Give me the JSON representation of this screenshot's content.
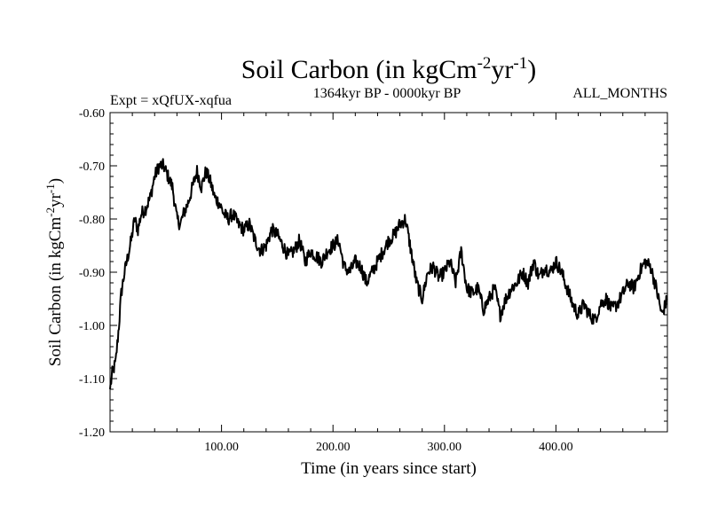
{
  "chart_data": {
    "type": "line",
    "title": "Soil Carbon (in kgCm",
    "title_sup1": "-2",
    "title_mid": "yr",
    "title_sup2": "-1",
    "title_close": ")",
    "subtitle": "1364kyr BP - 0000kyr BP",
    "experiment": "Expt = xQfUX-xqfua",
    "months": "ALL_MONTHS",
    "xlabel": "Time (in years since start)",
    "ylabel": "Soil Carbon (in kgCm",
    "ylabel_sup1": "-2",
    "ylabel_mid": "yr",
    "ylabel_sup2": "-1",
    "ylabel_close": ")",
    "xlim": [
      0,
      500
    ],
    "ylim": [
      -1.2,
      -0.6
    ],
    "x_ticks": [
      100,
      200,
      300,
      400
    ],
    "x_tick_labels": [
      "100.00",
      "200.00",
      "300.00",
      "400.00"
    ],
    "y_ticks": [
      -0.6,
      -0.7,
      -0.8,
      -0.9,
      -1.0,
      -1.1,
      -1.2
    ],
    "y_tick_labels": [
      "-0.60",
      "-0.70",
      "-0.80",
      "-0.90",
      "-1.00",
      "-1.10",
      "-1.20"
    ],
    "series": [
      {
        "name": "Soil Carbon",
        "color": "#000000",
        "x": [
          0,
          2,
          5,
          8,
          10,
          13,
          16,
          19,
          22,
          25,
          28,
          32,
          36,
          40,
          44,
          48,
          52,
          56,
          60,
          63,
          66,
          70,
          74,
          78,
          82,
          86,
          90,
          94,
          98,
          102,
          106,
          110,
          115,
          120,
          125,
          130,
          135,
          140,
          145,
          150,
          155,
          160,
          165,
          170,
          175,
          180,
          185,
          190,
          195,
          200,
          205,
          210,
          215,
          220,
          225,
          230,
          235,
          240,
          245,
          250,
          255,
          260,
          265,
          270,
          275,
          280,
          285,
          290,
          295,
          300,
          305,
          310,
          315,
          320,
          325,
          330,
          335,
          340,
          345,
          350,
          355,
          360,
          365,
          370,
          375,
          380,
          385,
          390,
          395,
          400,
          405,
          410,
          415,
          420,
          425,
          430,
          435,
          440,
          445,
          450,
          455,
          460,
          465,
          470,
          475,
          480,
          485,
          490,
          495,
          500
        ],
        "values": [
          -1.12,
          -1.09,
          -1.07,
          -1.0,
          -0.94,
          -0.9,
          -0.87,
          -0.84,
          -0.8,
          -0.82,
          -0.79,
          -0.78,
          -0.76,
          -0.72,
          -0.7,
          -0.7,
          -0.72,
          -0.74,
          -0.8,
          -0.81,
          -0.79,
          -0.77,
          -0.74,
          -0.71,
          -0.74,
          -0.71,
          -0.73,
          -0.76,
          -0.77,
          -0.79,
          -0.8,
          -0.79,
          -0.81,
          -0.82,
          -0.81,
          -0.84,
          -0.86,
          -0.85,
          -0.82,
          -0.83,
          -0.85,
          -0.87,
          -0.86,
          -0.84,
          -0.88,
          -0.86,
          -0.87,
          -0.88,
          -0.86,
          -0.85,
          -0.84,
          -0.89,
          -0.9,
          -0.88,
          -0.89,
          -0.92,
          -0.9,
          -0.88,
          -0.86,
          -0.84,
          -0.83,
          -0.81,
          -0.8,
          -0.86,
          -0.92,
          -0.95,
          -0.9,
          -0.89,
          -0.91,
          -0.9,
          -0.88,
          -0.92,
          -0.86,
          -0.93,
          -0.94,
          -0.93,
          -0.97,
          -0.95,
          -0.93,
          -0.98,
          -0.95,
          -0.93,
          -0.92,
          -0.9,
          -0.92,
          -0.88,
          -0.91,
          -0.89,
          -0.9,
          -0.88,
          -0.9,
          -0.93,
          -0.96,
          -0.98,
          -0.96,
          -0.98,
          -0.99,
          -0.96,
          -0.95,
          -0.97,
          -0.96,
          -0.94,
          -0.92,
          -0.93,
          -0.9,
          -0.88,
          -0.89,
          -0.93,
          -0.98,
          -0.95
        ]
      }
    ]
  }
}
